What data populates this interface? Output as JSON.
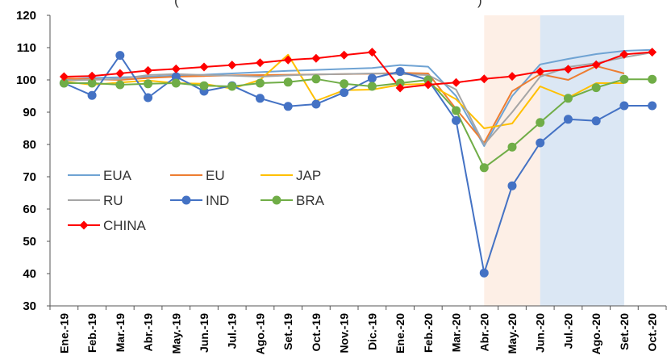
{
  "chart_data": {
    "type": "line",
    "title": "",
    "partial_title_fragments": [
      "(",
      ")"
    ],
    "xlabel": "",
    "ylabel": "",
    "ylim": [
      30,
      120
    ],
    "yticks": [
      30,
      40,
      50,
      60,
      70,
      80,
      90,
      100,
      110,
      120
    ],
    "grid": false,
    "legend_position": "left-center",
    "categories": [
      "Ene.-19",
      "Feb.-19",
      "Mar.-19",
      "Abr.-19",
      "May.-19",
      "Jun.-19",
      "Jul.-19",
      "Ago.-19",
      "Set.-19",
      "Oct.-19",
      "Nov.-19",
      "Dic.-19",
      "Ene.-20",
      "Feb.-20",
      "Mar.-20",
      "Abr.-20",
      "May.-20",
      "Jun.-20",
      "Jul.-20",
      "Ago.-20",
      "Set.-20",
      "Oct.-20"
    ],
    "shaded_regions": [
      {
        "from": "Abr.-20",
        "to": "Jun.-20",
        "color": "#fdefe6"
      },
      {
        "from": "Jun.-20",
        "to": "Set.-20",
        "color": "#dbe7f4"
      }
    ],
    "series": [
      {
        "name": "EUA",
        "color": "#6fa3d3",
        "marker": "none",
        "values": [
          100.2,
          100.6,
          100.8,
          101.0,
          101.3,
          101.6,
          102.0,
          102.4,
          102.8,
          103.1,
          103.4,
          103.7,
          104.6,
          104.1,
          95.0,
          79.5,
          95.0,
          104.8,
          106.5,
          108.0,
          109.0,
          109.3
        ]
      },
      {
        "name": "EU",
        "color": "#ed7d31",
        "marker": "none",
        "values": [
          100.5,
          100.2,
          100.0,
          100.6,
          101.0,
          101.2,
          101.4,
          101.5,
          101.6,
          101.7,
          101.8,
          101.9,
          102.2,
          102.0,
          91.0,
          80.5,
          96.5,
          101.8,
          100.0,
          104.3,
          102.0,
          null
        ]
      },
      {
        "name": "JAP",
        "color": "#ffc000",
        "marker": "none",
        "values": [
          99.5,
          98.5,
          99.2,
          99.8,
          99.0,
          98.8,
          97.3,
          100.0,
          107.8,
          93.5,
          96.8,
          97.0,
          98.5,
          98.8,
          94.0,
          85.0,
          86.5,
          98.0,
          94.5,
          99.0,
          99.0,
          null
        ]
      },
      {
        "name": "RU",
        "color": "#a5a5a5",
        "marker": "none",
        "values": [
          99.8,
          100.0,
          100.3,
          101.5,
          101.8,
          101.5,
          101.3,
          101.0,
          101.4,
          101.7,
          101.8,
          102.0,
          101.8,
          101.5,
          97.0,
          80.0,
          90.0,
          101.0,
          104.0,
          105.2,
          107.0,
          108.5
        ]
      },
      {
        "name": "IND",
        "color": "#4472c4",
        "marker": "circle",
        "values": [
          99.0,
          95.2,
          107.6,
          94.5,
          101.0,
          96.5,
          98.2,
          94.3,
          91.8,
          92.5,
          96.1,
          100.5,
          102.6,
          100.0,
          87.4,
          40.2,
          67.2,
          80.5,
          87.8,
          87.3,
          92.0,
          92.0
        ]
      },
      {
        "name": "BRA",
        "color": "#70ad47",
        "marker": "circle",
        "values": [
          99.0,
          99.0,
          98.5,
          98.8,
          99.0,
          98.2,
          98.0,
          99.0,
          99.3,
          100.3,
          98.8,
          98.0,
          99.0,
          100.0,
          90.5,
          72.8,
          79.2,
          86.8,
          94.3,
          97.6,
          100.2,
          100.2
        ]
      },
      {
        "name": "CHINA",
        "color": "#ff0000",
        "marker": "diamond",
        "values": [
          101.0,
          101.2,
          102.0,
          102.9,
          103.4,
          104.0,
          104.6,
          105.3,
          106.2,
          106.7,
          107.7,
          108.6,
          97.5,
          98.5,
          99.2,
          100.3,
          101.1,
          102.6,
          103.3,
          104.7,
          107.9,
          108.6
        ]
      }
    ]
  }
}
